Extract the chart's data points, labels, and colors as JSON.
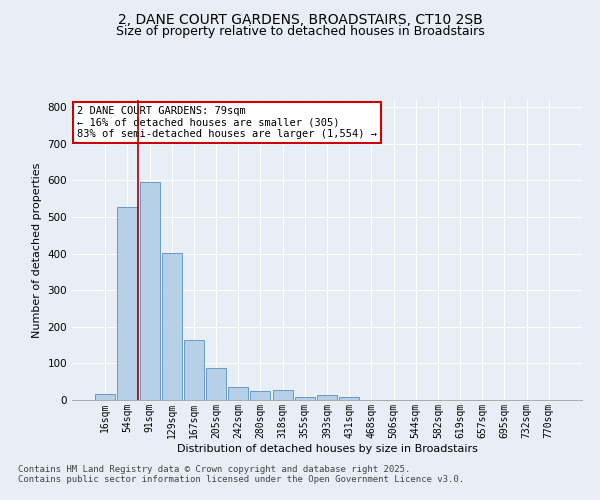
{
  "title_line1": "2, DANE COURT GARDENS, BROADSTAIRS, CT10 2SB",
  "title_line2": "Size of property relative to detached houses in Broadstairs",
  "xlabel": "Distribution of detached houses by size in Broadstairs",
  "ylabel": "Number of detached properties",
  "categories": [
    "16sqm",
    "54sqm",
    "91sqm",
    "129sqm",
    "167sqm",
    "205sqm",
    "242sqm",
    "280sqm",
    "318sqm",
    "355sqm",
    "393sqm",
    "431sqm",
    "468sqm",
    "506sqm",
    "544sqm",
    "582sqm",
    "619sqm",
    "657sqm",
    "695sqm",
    "732sqm",
    "770sqm"
  ],
  "values": [
    16,
    528,
    595,
    403,
    165,
    88,
    35,
    25,
    28,
    8,
    15,
    7,
    0,
    0,
    0,
    0,
    0,
    0,
    0,
    0,
    0
  ],
  "bar_color": "#b8cfe8",
  "bar_edge_color": "#5a8fc0",
  "vline_color": "#aa0000",
  "vline_pos": 1.5,
  "annotation_text": "2 DANE COURT GARDENS: 79sqm\n← 16% of detached houses are smaller (305)\n83% of semi-detached houses are larger (1,554) →",
  "annotation_box_facecolor": "#ffffff",
  "annotation_box_edgecolor": "#cc0000",
  "ylim": [
    0,
    820
  ],
  "yticks": [
    0,
    100,
    200,
    300,
    400,
    500,
    600,
    700,
    800
  ],
  "footer_text": "Contains HM Land Registry data © Crown copyright and database right 2025.\nContains public sector information licensed under the Open Government Licence v3.0.",
  "bg_color": "#e8eef5",
  "grid_color": "#ffffff",
  "title_fontsize": 10,
  "subtitle_fontsize": 9,
  "axis_label_fontsize": 8,
  "tick_fontsize": 7,
  "annotation_fontsize": 7.5,
  "footer_fontsize": 6.5
}
